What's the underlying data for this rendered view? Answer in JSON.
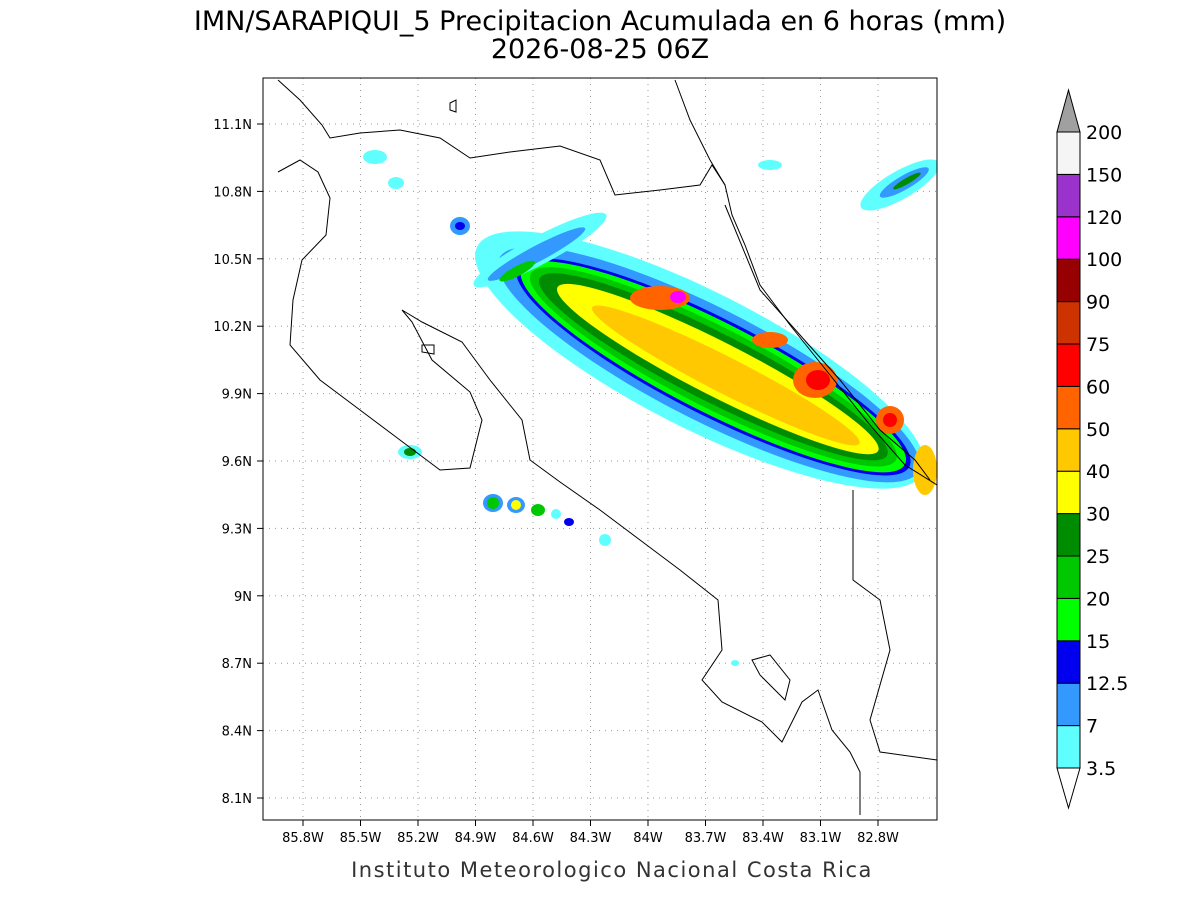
{
  "map": {
    "title": "IMN/SARAPIQUI_5 Precipitacion Acumulada en 6 horas (mm)",
    "subtitle": "2026-08-25 06Z",
    "credit": "Instituto Meteorologico Nacional Costa Rica",
    "lon_ticks": [
      "85.8W",
      "85.5W",
      "85.2W",
      "84.9W",
      "84.6W",
      "84.3W",
      "84W",
      "83.7W",
      "83.4W",
      "83.1W",
      "82.8W"
    ],
    "lat_ticks": [
      "11.1N",
      "10.8N",
      "10.5N",
      "10.2N",
      "9.9N",
      "9.6N",
      "9.3N",
      "9N",
      "8.7N",
      "8.4N",
      "8.1N"
    ],
    "colorbar": {
      "levels": [
        3.5,
        7,
        12.5,
        15,
        20,
        25,
        30,
        40,
        50,
        60,
        75,
        90,
        100,
        120,
        150,
        200
      ],
      "colors": [
        "#60ffff",
        "#3399ff",
        "#0000ee",
        "#00ff00",
        "#00c800",
        "#008c00",
        "#ffff00",
        "#ffc800",
        "#ff6400",
        "#ff0000",
        "#cc3300",
        "#960000",
        "#ff00ff",
        "#9933cc",
        "#f5f5f5"
      ],
      "under_color": "#ffffff",
      "over_color": "#a0a0a0"
    }
  }
}
